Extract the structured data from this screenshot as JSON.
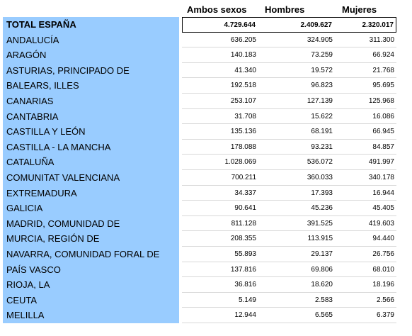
{
  "headers": [
    "Ambos sexos",
    "Hombres",
    "Mujeres"
  ],
  "rows": [
    {
      "name": "TOTAL ESPAÑA",
      "ambos": "4.729.644",
      "hombres": "2.409.627",
      "mujeres": "2.320.017"
    },
    {
      "name": "ANDALUCÍA",
      "ambos": "636.205",
      "hombres": "324.905",
      "mujeres": "311.300"
    },
    {
      "name": "ARAGÓN",
      "ambos": "140.183",
      "hombres": "73.259",
      "mujeres": "66.924"
    },
    {
      "name": "ASTURIAS, PRINCIPADO DE",
      "ambos": "41.340",
      "hombres": "19.572",
      "mujeres": "21.768"
    },
    {
      "name": "BALEARS, ILLES",
      "ambos": "192.518",
      "hombres": "96.823",
      "mujeres": "95.695"
    },
    {
      "name": "CANARIAS",
      "ambos": "253.107",
      "hombres": "127.139",
      "mujeres": "125.968"
    },
    {
      "name": "CANTABRIA",
      "ambos": "31.708",
      "hombres": "15.622",
      "mujeres": "16.086"
    },
    {
      "name": "CASTILLA Y LEÓN",
      "ambos": "135.136",
      "hombres": "68.191",
      "mujeres": "66.945"
    },
    {
      "name": "CASTILLA - LA MANCHA",
      "ambos": "178.088",
      "hombres": "93.231",
      "mujeres": "84.857"
    },
    {
      "name": "CATALUÑA",
      "ambos": "1.028.069",
      "hombres": "536.072",
      "mujeres": "491.997"
    },
    {
      "name": "COMUNITAT VALENCIANA",
      "ambos": "700.211",
      "hombres": "360.033",
      "mujeres": "340.178"
    },
    {
      "name": "EXTREMADURA",
      "ambos": "34.337",
      "hombres": "17.393",
      "mujeres": "16.944"
    },
    {
      "name": "GALICIA",
      "ambos": "90.641",
      "hombres": "45.236",
      "mujeres": "45.405"
    },
    {
      "name": "MADRID, COMUNIDAD DE",
      "ambos": "811.128",
      "hombres": "391.525",
      "mujeres": "419.603"
    },
    {
      "name": "MURCIA, REGIÓN DE",
      "ambos": "208.355",
      "hombres": "113.915",
      "mujeres": "94.440"
    },
    {
      "name": "NAVARRA, COMUNIDAD FORAL DE",
      "ambos": "55.893",
      "hombres": "29.137",
      "mujeres": "26.756"
    },
    {
      "name": "PAÍS VASCO",
      "ambos": "137.816",
      "hombres": "69.806",
      "mujeres": "68.010"
    },
    {
      "name": "RIOJA, LA",
      "ambos": "36.816",
      "hombres": "18.620",
      "mujeres": "18.196"
    },
    {
      "name": "CEUTA",
      "ambos": "5.149",
      "hombres": "2.583",
      "mujeres": "2.566"
    },
    {
      "name": "MELILLA",
      "ambos": "12.944",
      "hombres": "6.565",
      "mujeres": "6.379"
    }
  ]
}
